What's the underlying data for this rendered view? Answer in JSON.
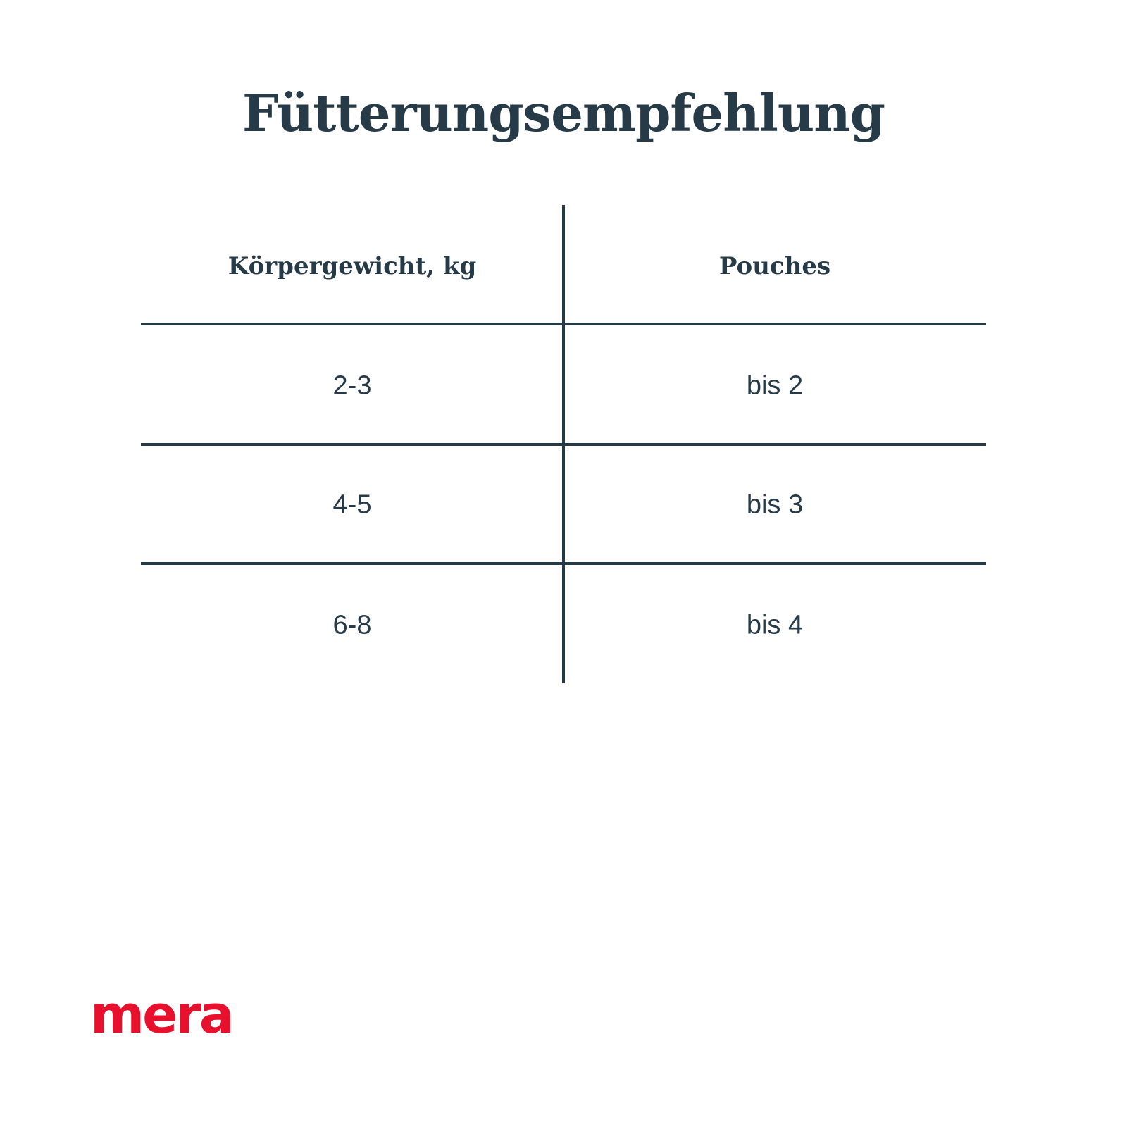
{
  "title": "Fütterungsempfehlung",
  "table": {
    "headers": [
      "Körpergewicht, kg",
      "Pouches"
    ],
    "rows": [
      [
        "2-3",
        "bis 2"
      ],
      [
        "4-5",
        "bis 3"
      ],
      [
        "6-8",
        "bis 4"
      ]
    ]
  },
  "logo": "mera",
  "colors": {
    "text": "#263a47",
    "brand": "#e8112d"
  }
}
